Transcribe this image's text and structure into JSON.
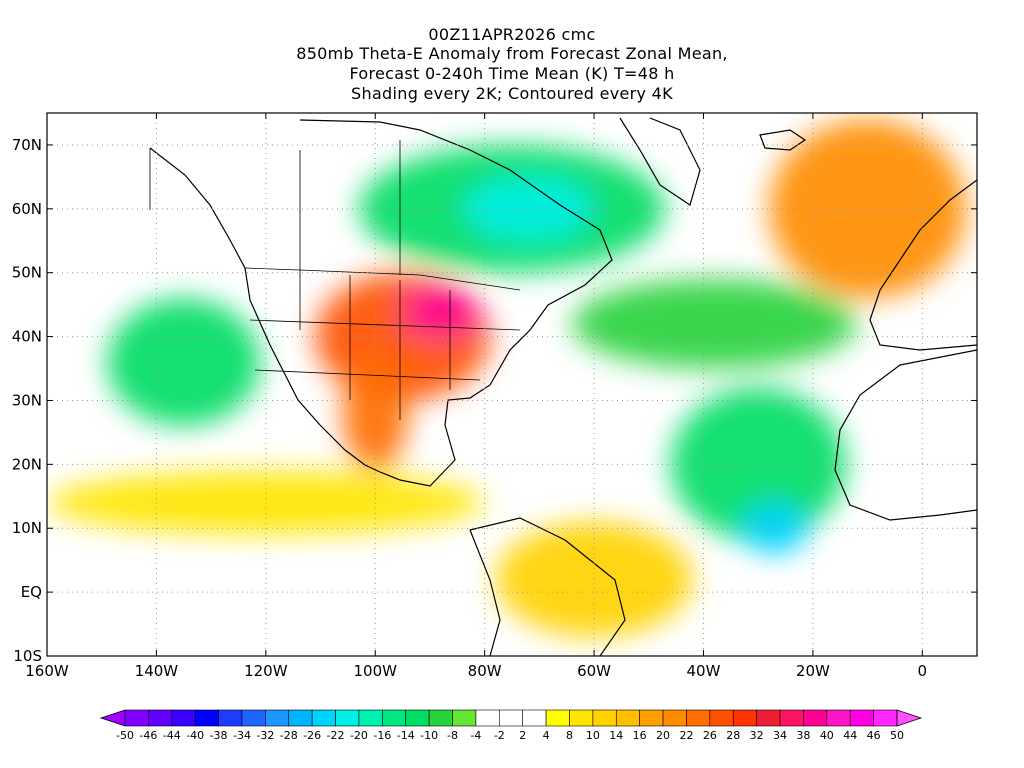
{
  "header": {
    "line1": "00Z11APR2026 cmc",
    "line2": "850mb Theta-E Anomaly from Forecast Zonal Mean,",
    "line3": "Forecast 0-240h Time Mean (K) T=48 h",
    "line4": "Shading every 2K; Contoured every 4K"
  },
  "map": {
    "lon_range": [
      -160,
      10
    ],
    "lat_range": [
      -10,
      75
    ],
    "lon_ticks": [
      {
        "value": -160,
        "label": "160W"
      },
      {
        "value": -140,
        "label": "140W"
      },
      {
        "value": -120,
        "label": "120W"
      },
      {
        "value": -100,
        "label": "100W"
      },
      {
        "value": -80,
        "label": "80W"
      },
      {
        "value": -60,
        "label": "60W"
      },
      {
        "value": -40,
        "label": "40W"
      },
      {
        "value": -20,
        "label": "20W"
      },
      {
        "value": 0,
        "label": "0"
      }
    ],
    "lat_ticks": [
      {
        "value": 70,
        "label": "70N"
      },
      {
        "value": 60,
        "label": "60N"
      },
      {
        "value": 50,
        "label": "50N"
      },
      {
        "value": 40,
        "label": "40N"
      },
      {
        "value": 30,
        "label": "30N"
      },
      {
        "value": 20,
        "label": "20N"
      },
      {
        "value": 10,
        "label": "10N"
      },
      {
        "value": 0,
        "label": "EQ"
      },
      {
        "value": -10,
        "label": "10S"
      }
    ],
    "regions": [
      {
        "name": "canada-cold-anomaly",
        "lon": -75,
        "lat": 60,
        "rlon": 28,
        "rlat": 10,
        "value": -12
      },
      {
        "name": "hudson-core",
        "lon": -72,
        "lat": 60,
        "rlon": 12,
        "rlat": 5,
        "value": -22
      },
      {
        "name": "pacific-cold",
        "lon": -135,
        "lat": 36,
        "rlon": 14,
        "rlat": 10,
        "value": -12
      },
      {
        "name": "atlantic-cold-band",
        "lon": -38,
        "lat": 42,
        "rlon": 26,
        "rlat": 7,
        "value": -10
      },
      {
        "name": "tropical-atlantic-cold",
        "lon": -30,
        "lat": 20,
        "rlon": 16,
        "rlat": 12,
        "value": -14
      },
      {
        "name": "cape-verde-core",
        "lon": -27,
        "lat": 10,
        "rlon": 6,
        "rlat": 4,
        "value": -24
      },
      {
        "name": "us-warm-anomaly",
        "lon": -95,
        "lat": 40,
        "rlon": 16,
        "rlat": 10,
        "value": 26
      },
      {
        "name": "great-lakes-core",
        "lon": -88,
        "lat": 44,
        "rlon": 7,
        "rlat": 4,
        "value": 38
      },
      {
        "name": "mexico-warm",
        "lon": -100,
        "lat": 28,
        "rlon": 6,
        "rlat": 9,
        "value": 24
      },
      {
        "name": "europe-warm",
        "lon": -10,
        "lat": 60,
        "rlon": 18,
        "rlat": 14,
        "value": 20
      },
      {
        "name": "tropical-warm",
        "lon": -120,
        "lat": 14,
        "rlon": 40,
        "rlat": 5,
        "value": 8
      },
      {
        "name": "south-america-warm",
        "lon": -60,
        "lat": 2,
        "rlon": 18,
        "rlat": 9,
        "value": 10
      }
    ]
  },
  "colorbar": {
    "levels": [
      -50,
      -46,
      -44,
      -40,
      -38,
      -34,
      -32,
      -28,
      -26,
      -22,
      -20,
      -16,
      -14,
      -10,
      -8,
      -4,
      -2,
      2,
      4,
      8,
      10,
      14,
      16,
      20,
      22,
      26,
      28,
      32,
      34,
      38,
      40,
      44,
      46,
      50
    ],
    "labels": [
      "-50",
      "-46",
      "-44",
      "-40",
      "-38",
      "-34",
      "-32",
      "-28",
      "-26",
      "-22",
      "-20",
      "-16",
      "-14",
      "-10",
      "-8",
      "-4",
      "-2",
      "2",
      "4",
      "8",
      "10",
      "14",
      "16",
      "20",
      "22",
      "26",
      "28",
      "32",
      "34",
      "38",
      "40",
      "44",
      "46",
      "50"
    ],
    "colors": [
      "#a000ff",
      "#8200ff",
      "#6400ff",
      "#3c00ff",
      "#0000ff",
      "#1e3cff",
      "#1e64ff",
      "#1e96ff",
      "#00b4ff",
      "#00d2ff",
      "#00f0e6",
      "#00f0b4",
      "#00e682",
      "#00dc64",
      "#28d23c",
      "#64e632",
      "#ffffff",
      "#ffffff",
      "#ffffff",
      "#ffff00",
      "#ffe600",
      "#ffd200",
      "#ffbe00",
      "#ffa000",
      "#ff8c00",
      "#ff6e00",
      "#ff5000",
      "#ff3200",
      "#f01e32",
      "#ff1464",
      "#ff0096",
      "#ff14c8",
      "#ff00e6",
      "#ff28ff",
      "#ff50ff"
    ]
  }
}
